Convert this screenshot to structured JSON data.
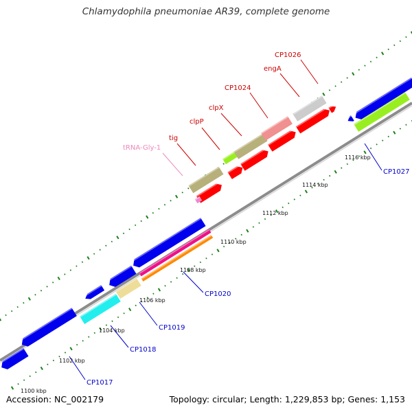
{
  "title": "Chlamydophila pneumoniae AR39, complete genome",
  "accession": "Accession: NC_002179",
  "summary": "Topology: circular; Length: 1,229,853 bp; Genes: 1,153",
  "scale_labels": [
    "1100 kbp",
    "1102 kbp",
    "1104 kbp",
    "1106 kbp",
    "1108 kbp",
    "1110 kbp",
    "1112 kbp",
    "1114 kbp",
    "1116 kbp"
  ],
  "gene_labels": [
    {
      "text": "CP1026",
      "color": "#cc0000"
    },
    {
      "text": "engA",
      "color": "#cc0000"
    },
    {
      "text": "CP1024",
      "color": "#cc0000"
    },
    {
      "text": "clpX",
      "color": "#cc0000"
    },
    {
      "text": "clpP",
      "color": "#cc0000"
    },
    {
      "text": "tig",
      "color": "#cc0000"
    },
    {
      "text": "tRNA-Gly-1",
      "color": "#ee88bb"
    },
    {
      "text": "CP1027",
      "color": "#0000cc"
    },
    {
      "text": "CP1020",
      "color": "#0000cc"
    },
    {
      "text": "CP1019",
      "color": "#0000cc"
    },
    {
      "text": "CP1018",
      "color": "#0000cc"
    },
    {
      "text": "CP1017",
      "color": "#0000cc"
    }
  ],
  "colors": {
    "backbone": "#8c8c8c",
    "tick": "#1a7f1a",
    "forward_cds": "#ff0000",
    "reverse_cds": "#0000ee",
    "olive": "#b8b07a",
    "salmon": "#f09090",
    "grey": "#cccccc",
    "lime": "#99ee22",
    "cyan": "#22eeee",
    "khaki": "#eedd99",
    "magenta": "#ee1188",
    "orange": "#ff8800",
    "trna": "#ee88cc"
  }
}
